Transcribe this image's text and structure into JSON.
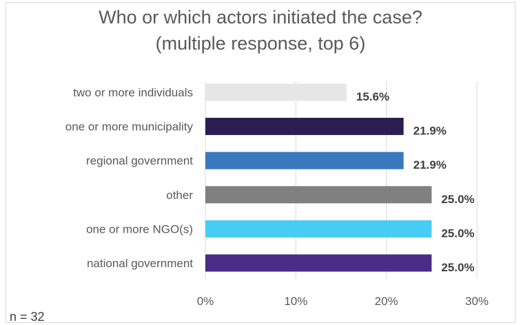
{
  "chart_data": {
    "type": "bar",
    "orientation": "horizontal",
    "title": [
      "Who or which actors initiated the case?",
      "(multiple response, top 6)"
    ],
    "categories": [
      "two or more individuals",
      "one or more municipality",
      "regional government",
      "other",
      "one or more NGO(s)",
      "national government"
    ],
    "values": [
      15.6,
      21.9,
      21.9,
      25.0,
      25.0,
      25.0
    ],
    "data_labels": [
      "15.6%",
      "21.9%",
      "21.9%",
      "25.0%",
      "25.0%",
      "25.0%"
    ],
    "colors": [
      "#e6e6e6",
      "#2b1d52",
      "#3a78bd",
      "#808080",
      "#47cdf5",
      "#4a2c86"
    ],
    "xlim": [
      0,
      30
    ],
    "x_ticks": [
      0,
      10,
      20,
      30
    ],
    "x_tick_labels": [
      "0%",
      "10%",
      "20%",
      "30%"
    ],
    "grid": "vertical gridlines",
    "legend": "none"
  },
  "footer": {
    "note": "n = 32"
  }
}
